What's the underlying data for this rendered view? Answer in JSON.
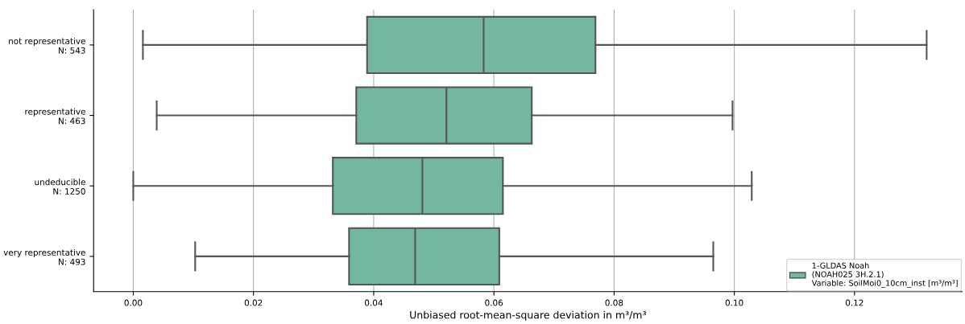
{
  "chart_data": {
    "type": "box",
    "orientation": "horizontal",
    "categories": [
      "not representative\nN: 543",
      "representative\nN: 463",
      "undeducible\nN: 1250",
      "very representative\nN: 493"
    ],
    "series": [
      {
        "name": "1-GLDAS Noah\n(NOAH025 3H.2.1)\nVariable: SoilMoi0_10cm_inst [m³/m³]",
        "color": "#73b6a1",
        "boxes": [
          {
            "low": 0.0016,
            "q1": 0.0389,
            "median": 0.0583,
            "q3": 0.0769,
            "high": 0.132
          },
          {
            "low": 0.0039,
            "q1": 0.0371,
            "median": 0.0521,
            "q3": 0.0663,
            "high": 0.0997
          },
          {
            "low": 0.0,
            "q1": 0.0332,
            "median": 0.0481,
            "q3": 0.0615,
            "high": 0.1029
          },
          {
            "low": 0.0103,
            "q1": 0.0359,
            "median": 0.0469,
            "q3": 0.0609,
            "high": 0.0965
          }
        ]
      }
    ],
    "xlabel": "Unbiased root-mean-square deviation in m³/m³",
    "xlim": [
      -0.0066,
      0.1379
    ],
    "xticks": [
      {
        "value": 0,
        "label": "0.00"
      },
      {
        "value": 0.02,
        "label": "0.02"
      },
      {
        "value": 0.04,
        "label": "0.04"
      },
      {
        "value": 0.06,
        "label": "0.06"
      },
      {
        "value": 0.08,
        "label": "0.08"
      },
      {
        "value": 0.1,
        "label": "0.10"
      },
      {
        "value": 0.12,
        "label": "0.12"
      }
    ],
    "grid": "x",
    "legend": "bottom right"
  }
}
